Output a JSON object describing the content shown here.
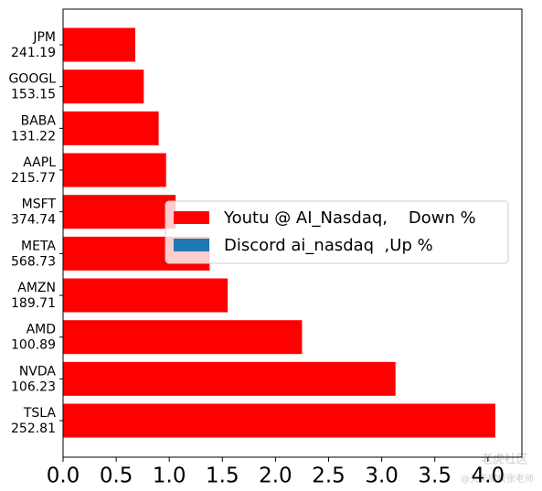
{
  "chart_data": {
    "type": "barh",
    "categories": [
      [
        "JPM",
        "241.19"
      ],
      [
        "GOOGL",
        "153.15"
      ],
      [
        "BABA",
        "131.22"
      ],
      [
        "AAPL",
        "215.77"
      ],
      [
        "MSFT",
        "374.74"
      ],
      [
        "META",
        "568.73"
      ],
      [
        "AMZN",
        "189.71"
      ],
      [
        "AMD",
        "100.89"
      ],
      [
        "NVDA",
        "106.23"
      ],
      [
        "TSLA",
        "252.81"
      ]
    ],
    "series": [
      {
        "name": "Youtu @ AI_Nasdaq,    Down %",
        "color": "#ff0000",
        "values": [
          0.68,
          0.76,
          0.9,
          0.97,
          1.06,
          1.38,
          1.55,
          2.25,
          3.13,
          4.07
        ]
      },
      {
        "name": "Discord ai_nasdaq  ,Up %",
        "color": "#1f77b4",
        "values": [
          0,
          0,
          0,
          0,
          0,
          0,
          0,
          0,
          0,
          0
        ]
      }
    ],
    "xlim": [
      0,
      4.32
    ],
    "xticks": [
      {
        "value": 0,
        "label": "0.0"
      },
      0.5,
      {
        "value": 1,
        "label": "1.0"
      },
      1.5,
      {
        "value": 2,
        "label": "2.0"
      },
      2.5,
      {
        "value": 3,
        "label": "3.0"
      },
      3.5,
      {
        "value": 4,
        "label": "4.0"
      }
    ],
    "legend": "center right",
    "watermark": [
      "老虎社区",
      "@天天期权张老师"
    ]
  }
}
